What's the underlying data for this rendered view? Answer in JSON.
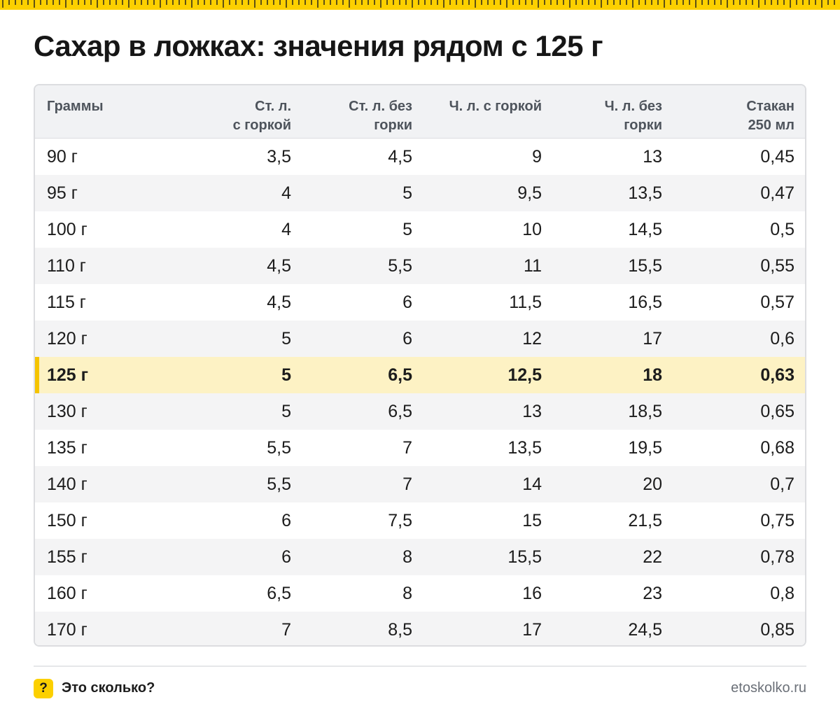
{
  "title": "Сахар в ложках: значения рядом с 125 г",
  "table": {
    "headers": [
      "Граммы",
      "Ст. л.\nс горкой",
      "Ст. л. без\nгорки",
      "Ч. л. с горкой",
      "Ч. л. без\nгорки",
      "Стакан\n250 мл"
    ],
    "rows": [
      [
        "90 г",
        "3,5",
        "4,5",
        "9",
        "13",
        "0,45"
      ],
      [
        "95 г",
        "4",
        "5",
        "9,5",
        "13,5",
        "0,47"
      ],
      [
        "100 г",
        "4",
        "5",
        "10",
        "14,5",
        "0,5"
      ],
      [
        "110 г",
        "4,5",
        "5,5",
        "11",
        "15,5",
        "0,55"
      ],
      [
        "115 г",
        "4,5",
        "6",
        "11,5",
        "16,5",
        "0,57"
      ],
      [
        "120 г",
        "5",
        "6",
        "12",
        "17",
        "0,6"
      ],
      [
        "125 г",
        "5",
        "6,5",
        "12,5",
        "18",
        "0,63"
      ],
      [
        "130 г",
        "5",
        "6,5",
        "13",
        "18,5",
        "0,65"
      ],
      [
        "135 г",
        "5,5",
        "7",
        "13,5",
        "19,5",
        "0,68"
      ],
      [
        "140 г",
        "5,5",
        "7",
        "14",
        "20",
        "0,7"
      ],
      [
        "150 г",
        "6",
        "7,5",
        "15",
        "21,5",
        "0,75"
      ],
      [
        "155 г",
        "6",
        "8",
        "15,5",
        "22",
        "0,78"
      ],
      [
        "160 г",
        "6,5",
        "8",
        "16",
        "23",
        "0,8"
      ],
      [
        "170 г",
        "7",
        "8,5",
        "17",
        "24,5",
        "0,85"
      ]
    ],
    "highlighted_row": 6
  },
  "footer": {
    "badge_icon": "question-mark-icon",
    "badge_glyph": "?",
    "brand": "Это сколько?",
    "site": "etoskolko.ru"
  },
  "colors": {
    "accent_yellow": "#fcd000",
    "highlight_row": "#fdf2c4",
    "highlight_bar": "#f5c400",
    "header_bg": "#f1f2f4",
    "alt_row_bg": "#f4f4f5"
  }
}
